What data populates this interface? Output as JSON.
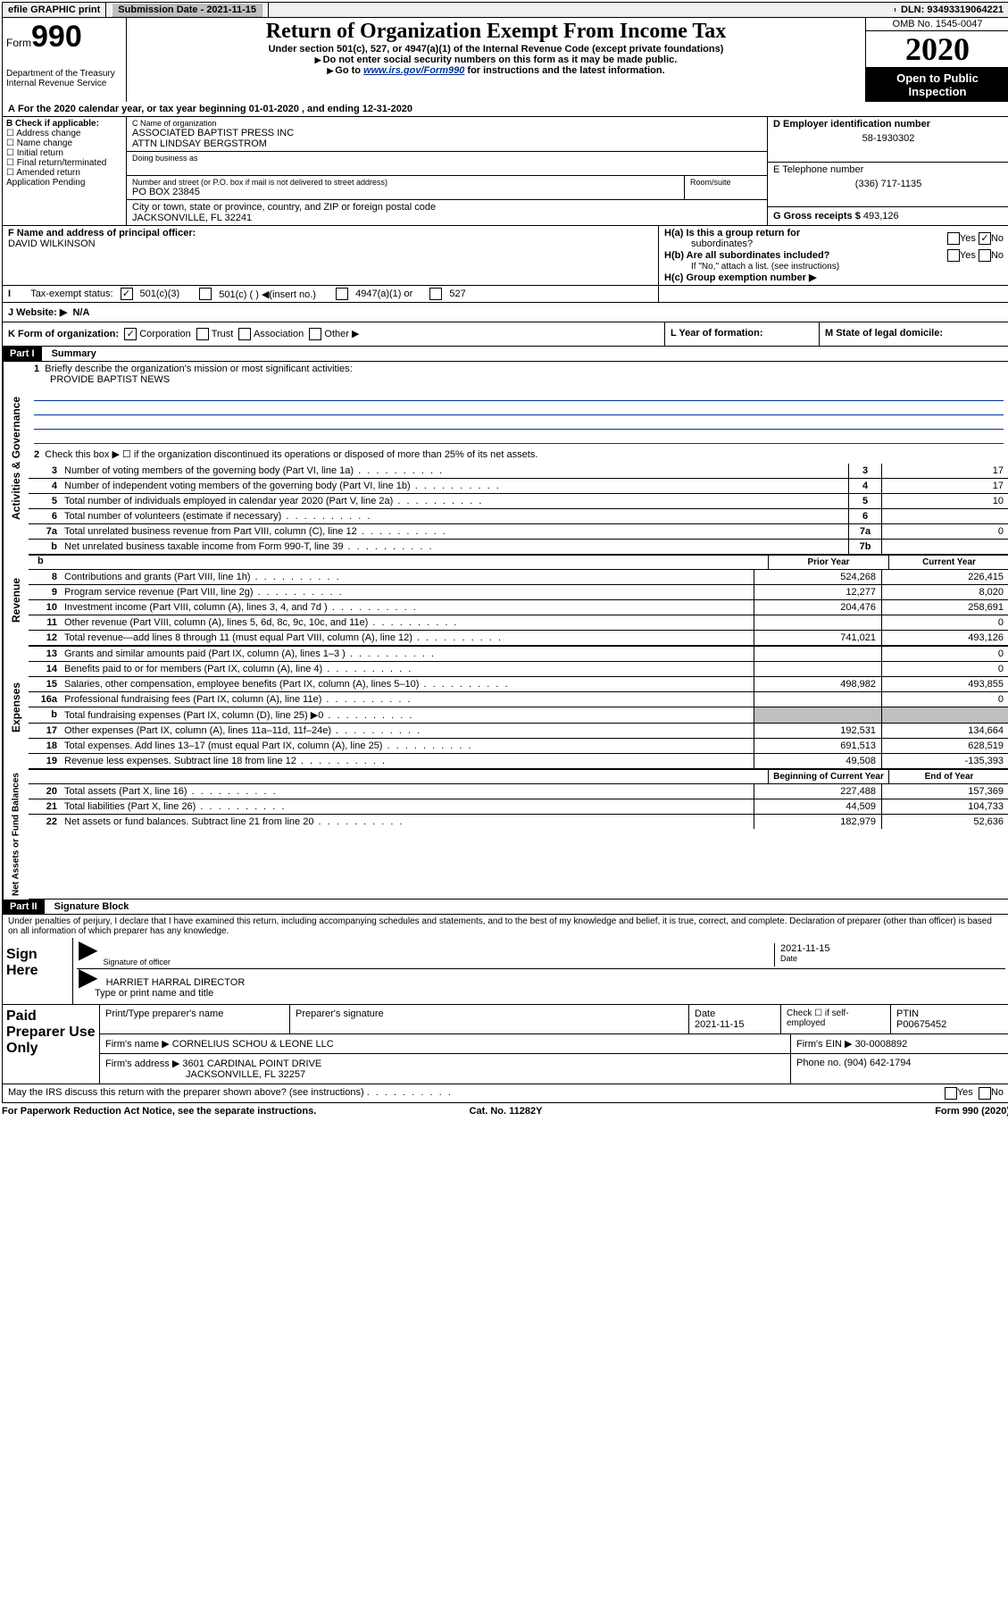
{
  "topbar": {
    "efile_label": "efile GRAPHIC print",
    "submission_label": "Submission Date - 2021-11-15",
    "dln_label": "DLN: 93493319064221"
  },
  "header": {
    "form_prefix": "Form",
    "form_number": "990",
    "dept": "Department of the Treasury",
    "irs": "Internal Revenue Service",
    "title": "Return of Organization Exempt From Income Tax",
    "subtitle": "Under section 501(c), 527, or 4947(a)(1) of the Internal Revenue Code (except private foundations)",
    "note1": "Do not enter social security numbers on this form as it may be made public.",
    "note2_pre": "Go to ",
    "note2_link": "www.irs.gov/Form990",
    "note2_post": " for instructions and the latest information.",
    "omb": "OMB No. 1545-0047",
    "year": "2020",
    "open_public1": "Open to Public",
    "open_public2": "Inspection"
  },
  "line_A": "For the 2020 calendar year, or tax year beginning 01-01-2020      , and ending 12-31-2020",
  "box_B": {
    "title": "B Check if applicable:",
    "addr_change": "Address change",
    "name_change": "Name change",
    "initial": "Initial return",
    "final": "Final return/terminated",
    "amended": "Amended return",
    "app_pending": "Application Pending"
  },
  "box_C": {
    "name_label": "C Name of organization",
    "org_name": "ASSOCIATED BAPTIST PRESS INC",
    "attn": "ATTN LINDSAY BERGSTROM",
    "dba_label": "Doing business as",
    "dba": "",
    "street_label": "Number and street (or P.O. box if mail is not delivered to street address)",
    "room_label": "Room/suite",
    "street": "PO BOX 23845",
    "city_label": "City or town, state or province, country, and ZIP or foreign postal code",
    "city": "JACKSONVILLE, FL  32241"
  },
  "box_D": {
    "label": "D Employer identification number",
    "ein": "58-1930302"
  },
  "box_E": {
    "label": "E Telephone number",
    "phone": "(336) 717-1135"
  },
  "box_G": {
    "label": "G Gross receipts $",
    "amount": "493,126"
  },
  "box_F": {
    "label": "F  Name and address of principal officer:",
    "name": "DAVID WILKINSON"
  },
  "box_H": {
    "a_label": "H(a)  Is this a group return for",
    "a_label2": "subordinates?",
    "b_label": "H(b)  Are all subordinates included?",
    "b_note": "If \"No,\" attach a list. (see instructions)",
    "c_label": "H(c)  Group exemption number ▶",
    "yes": "Yes",
    "no": "No"
  },
  "line_I": {
    "label": "Tax-exempt status:",
    "c3": "501(c)(3)",
    "c_other": "501(c) (  ) ◀(insert no.)",
    "a1": "4947(a)(1) or",
    "527": "527"
  },
  "line_J": {
    "label": "J    Website: ▶",
    "value": "N/A"
  },
  "line_K": {
    "label": "K Form of organization:",
    "corp": "Corporation",
    "trust": "Trust",
    "assoc": "Association",
    "other": "Other ▶"
  },
  "line_L": {
    "label": "L Year of formation:",
    "value": ""
  },
  "line_M": {
    "label": "M State of legal domicile:",
    "value": ""
  },
  "part1": {
    "header": "Part I",
    "title": "Summary",
    "q1": "Briefly describe the organization's mission or most significant activities:",
    "mission": "PROVIDE BAPTIST NEWS",
    "q2": "Check this box ▶ ☐  if the organization discontinued its operations or disposed of more than 25% of its net assets.",
    "side_ag": "Activities & Governance",
    "side_rev": "Revenue",
    "side_exp": "Expenses",
    "side_net": "Net Assets or Fund Balances",
    "rows_gov": [
      {
        "n": "3",
        "desc": "Number of voting members of the governing body (Part VI, line 1a)",
        "box": "3",
        "val": "17"
      },
      {
        "n": "4",
        "desc": "Number of independent voting members of the governing body (Part VI, line 1b)",
        "box": "4",
        "val": "17"
      },
      {
        "n": "5",
        "desc": "Total number of individuals employed in calendar year 2020 (Part V, line 2a)",
        "box": "5",
        "val": "10"
      },
      {
        "n": "6",
        "desc": "Total number of volunteers (estimate if necessary)",
        "box": "6",
        "val": ""
      },
      {
        "n": "7a",
        "desc": "Total unrelated business revenue from Part VIII, column (C), line 12",
        "box": "7a",
        "val": "0"
      },
      {
        "n": "b",
        "desc": "Net unrelated business taxable income from Form 990-T, line 39",
        "box": "7b",
        "val": ""
      }
    ],
    "col_prior": "Prior Year",
    "col_current": "Current Year",
    "rows_rev": [
      {
        "n": "8",
        "desc": "Contributions and grants (Part VIII, line 1h)",
        "prior": "524,268",
        "curr": "226,415"
      },
      {
        "n": "9",
        "desc": "Program service revenue (Part VIII, line 2g)",
        "prior": "12,277",
        "curr": "8,020"
      },
      {
        "n": "10",
        "desc": "Investment income (Part VIII, column (A), lines 3, 4, and 7d )",
        "prior": "204,476",
        "curr": "258,691"
      },
      {
        "n": "11",
        "desc": "Other revenue (Part VIII, column (A), lines 5, 6d, 8c, 9c, 10c, and 11e)",
        "prior": "",
        "curr": "0"
      },
      {
        "n": "12",
        "desc": "Total revenue—add lines 8 through 11 (must equal Part VIII, column (A), line 12)",
        "prior": "741,021",
        "curr": "493,126"
      }
    ],
    "rows_exp": [
      {
        "n": "13",
        "desc": "Grants and similar amounts paid (Part IX, column (A), lines 1–3 )",
        "prior": "",
        "curr": "0"
      },
      {
        "n": "14",
        "desc": "Benefits paid to or for members (Part IX, column (A), line 4)",
        "prior": "",
        "curr": "0"
      },
      {
        "n": "15",
        "desc": "Salaries, other compensation, employee benefits (Part IX, column (A), lines 5–10)",
        "prior": "498,982",
        "curr": "493,855"
      },
      {
        "n": "16a",
        "desc": "Professional fundraising fees (Part IX, column (A), line 11e)",
        "prior": "",
        "curr": "0"
      },
      {
        "n": "b",
        "desc": "Total fundraising expenses (Part IX, column (D), line 25) ▶0",
        "prior": "GRAY",
        "curr": "GRAY"
      },
      {
        "n": "17",
        "desc": "Other expenses (Part IX, column (A), lines 11a–11d, 11f–24e)",
        "prior": "192,531",
        "curr": "134,664"
      },
      {
        "n": "18",
        "desc": "Total expenses. Add lines 13–17 (must equal Part IX, column (A), line 25)",
        "prior": "691,513",
        "curr": "628,519"
      },
      {
        "n": "19",
        "desc": "Revenue less expenses. Subtract line 18 from line 12",
        "prior": "49,508",
        "curr": "-135,393"
      }
    ],
    "col_begin": "Beginning of Current Year",
    "col_end": "End of Year",
    "rows_net": [
      {
        "n": "20",
        "desc": "Total assets (Part X, line 16)",
        "prior": "227,488",
        "curr": "157,369"
      },
      {
        "n": "21",
        "desc": "Total liabilities (Part X, line 26)",
        "prior": "44,509",
        "curr": "104,733"
      },
      {
        "n": "22",
        "desc": "Net assets or fund balances. Subtract line 21 from line 20",
        "prior": "182,979",
        "curr": "52,636"
      }
    ]
  },
  "part2": {
    "header": "Part II",
    "title": "Signature Block",
    "penalties": "Under penalties of perjury, I declare that I have examined this return, including accompanying schedules and statements, and to the best of my knowledge and belief, it is true, correct, and complete. Declaration of preparer (other than officer) is based on all information of which preparer has any knowledge."
  },
  "sign": {
    "here": "Sign Here",
    "sig_officer": "Signature of officer",
    "date_lbl": "Date",
    "date_val": "2021-11-15",
    "name": "HARRIET HARRAL  DIRECTOR",
    "name_lbl": "Type or print name and title"
  },
  "preparer": {
    "here": "Paid Preparer Use Only",
    "col1": "Print/Type preparer's name",
    "col2": "Preparer's signature",
    "col3_lbl": "Date",
    "col3_val": "2021-11-15",
    "col4": "Check ☐ if self-employed",
    "col5_lbl": "PTIN",
    "col5_val": "P00675452",
    "firm_name_lbl": "Firm's name      ▶",
    "firm_name": "CORNELIUS SCHOU & LEONE LLC",
    "firm_ein_lbl": "Firm's EIN ▶",
    "firm_ein": "30-0008892",
    "firm_addr_lbl": "Firm's address ▶",
    "firm_addr1": "3601 CARDINAL POINT DRIVE",
    "firm_addr2": "JACKSONVILLE, FL  32257",
    "phone_lbl": "Phone no.",
    "phone": "(904) 642-1794"
  },
  "footer": {
    "discuss": "May the IRS discuss this return with the preparer shown above? (see instructions)",
    "yes": "Yes",
    "no": "No",
    "paperwork": "For Paperwork Reduction Act Notice, see the separate instructions.",
    "cat": "Cat. No. 11282Y",
    "form": "Form 990 (2020)"
  },
  "colors": {
    "link": "#003399",
    "gray": "#bfbfbf",
    "black": "#000000"
  }
}
